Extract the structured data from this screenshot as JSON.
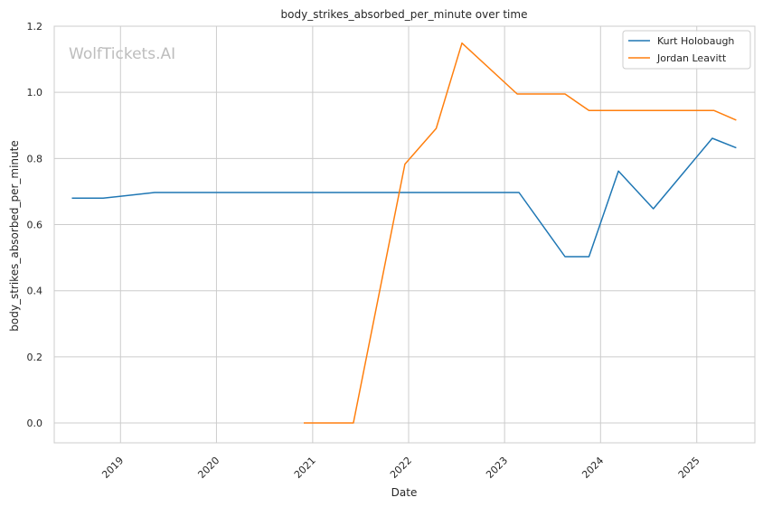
{
  "chart_data": {
    "type": "line",
    "title": "body_strikes_absorbed_per_minute over time",
    "xlabel": "Date",
    "ylabel": "body_strikes_absorbed_per_minute",
    "watermark": "WolfTickets.AI",
    "x_ticks": [
      "2019",
      "2020",
      "2021",
      "2022",
      "2023",
      "2024",
      "2025"
    ],
    "y_ticks": [
      "0.0",
      "0.2",
      "0.4",
      "0.6",
      "0.8",
      "1.0",
      "1.2"
    ],
    "ylim": [
      -0.06,
      1.2
    ],
    "xlim": [
      "2018-04-24",
      "2025-08-10"
    ],
    "grid": true,
    "legend_position": "top-right",
    "series": [
      {
        "name": "Kurt Holobaugh",
        "color": "#1f77b4",
        "x": [
          "2018-06-30",
          "2018-10-27",
          "2019-05-11",
          "2023-02-25",
          "2023-08-19",
          "2023-11-18",
          "2024-03-09",
          "2024-07-20",
          "2025-03-01",
          "2025-05-31"
        ],
        "y": [
          0.68,
          0.68,
          0.697,
          0.697,
          0.503,
          0.503,
          0.762,
          0.648,
          0.861,
          0.832
        ]
      },
      {
        "name": "Jordan Leavitt",
        "color": "#ff7f0e",
        "x": [
          "2020-11-28",
          "2021-06-05",
          "2021-12-18",
          "2022-04-16",
          "2022-07-23",
          "2023-02-18",
          "2023-08-19",
          "2023-11-18",
          "2025-03-08",
          "2025-05-31"
        ],
        "y": [
          0.0,
          0.0,
          0.783,
          0.891,
          1.149,
          0.995,
          0.995,
          0.945,
          0.945,
          0.916
        ]
      }
    ]
  }
}
